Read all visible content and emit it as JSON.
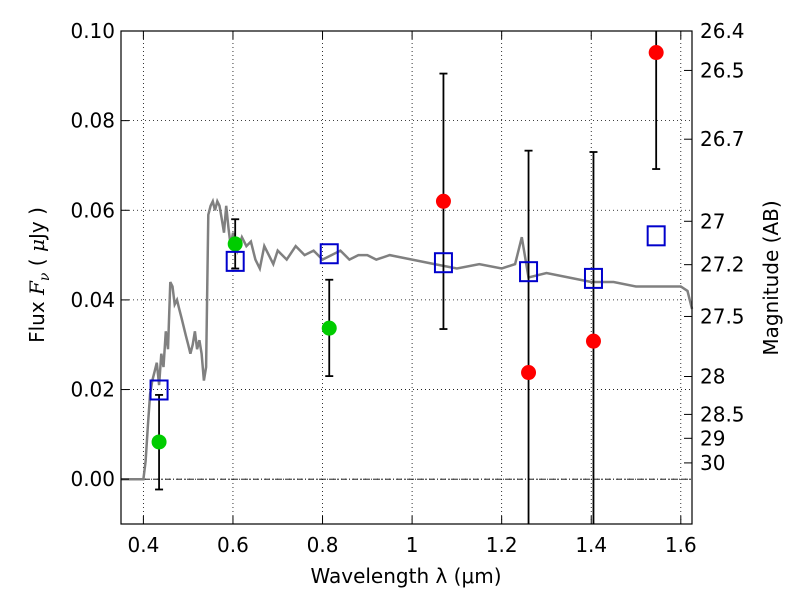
{
  "chart_data": {
    "type": "scatter",
    "xlabel": "Wavelength  λ (μm)",
    "ylabel": "Flux  F_ν  ( μJy )",
    "ylabel_parts": {
      "pre": "Flux  ",
      "F": "F",
      "sub": "ν",
      "mid": "  ( ",
      "mu": "μ",
      "post": "Jy )"
    },
    "y2label": "Magnitude (AB)",
    "xlim": [
      0.35,
      1.625
    ],
    "ylim": [
      -0.01,
      0.1
    ],
    "grid": true,
    "x_ticks": [
      {
        "value": 0.4,
        "label": "0.4"
      },
      {
        "value": 0.6,
        "label": "0.6"
      },
      {
        "value": 0.8,
        "label": "0.8"
      },
      {
        "value": 1.0,
        "label": "1"
      },
      {
        "value": 1.2,
        "label": "1.2"
      },
      {
        "value": 1.4,
        "label": "1.4"
      },
      {
        "value": 1.6,
        "label": "1.6"
      }
    ],
    "y_ticks": [
      {
        "value": 0.0,
        "label": "0.00"
      },
      {
        "value": 0.02,
        "label": "0.02"
      },
      {
        "value": 0.04,
        "label": "0.04"
      },
      {
        "value": 0.06,
        "label": "0.06"
      },
      {
        "value": 0.08,
        "label": "0.08"
      },
      {
        "value": 0.1,
        "label": "0.10"
      }
    ],
    "y2_ticks": [
      {
        "value": 26.4,
        "label": "26.4"
      },
      {
        "value": 26.5,
        "label": "26.5"
      },
      {
        "value": 26.7,
        "label": "26.7"
      },
      {
        "value": 27.0,
        "label": "27"
      },
      {
        "value": 27.2,
        "label": "27.2"
      },
      {
        "value": 27.5,
        "label": "27.5"
      },
      {
        "value": 28.0,
        "label": "28"
      },
      {
        "value": 28.5,
        "label": "28.5"
      },
      {
        "value": 29.0,
        "label": "29"
      },
      {
        "value": 30.0,
        "label": "30"
      }
    ],
    "template_spectrum": {
      "color": "#808080",
      "x": [
        0.35,
        0.4,
        0.405,
        0.41,
        0.415,
        0.42,
        0.425,
        0.43,
        0.435,
        0.44,
        0.445,
        0.45,
        0.455,
        0.46,
        0.465,
        0.47,
        0.475,
        0.48,
        0.485,
        0.49,
        0.495,
        0.5,
        0.505,
        0.51,
        0.515,
        0.52,
        0.525,
        0.53,
        0.535,
        0.54,
        0.545,
        0.55,
        0.555,
        0.56,
        0.565,
        0.57,
        0.575,
        0.58,
        0.585,
        0.59,
        0.595,
        0.6,
        0.61,
        0.62,
        0.63,
        0.64,
        0.65,
        0.66,
        0.67,
        0.68,
        0.69,
        0.7,
        0.72,
        0.74,
        0.76,
        0.78,
        0.8,
        0.82,
        0.84,
        0.86,
        0.88,
        0.9,
        0.92,
        0.95,
        1.0,
        1.05,
        1.1,
        1.15,
        1.2,
        1.23,
        1.245,
        1.26,
        1.3,
        1.35,
        1.4,
        1.45,
        1.5,
        1.55,
        1.6,
        1.615,
        1.625
      ],
      "y": [
        0.0,
        0.0,
        0.004,
        0.012,
        0.019,
        0.022,
        0.024,
        0.026,
        0.021,
        0.028,
        0.025,
        0.033,
        0.029,
        0.044,
        0.043,
        0.039,
        0.04,
        0.038,
        0.036,
        0.034,
        0.032,
        0.03,
        0.028,
        0.03,
        0.033,
        0.029,
        0.031,
        0.028,
        0.022,
        0.025,
        0.059,
        0.061,
        0.062,
        0.06,
        0.062,
        0.061,
        0.058,
        0.055,
        0.061,
        0.056,
        0.052,
        0.055,
        0.051,
        0.054,
        0.052,
        0.053,
        0.049,
        0.047,
        0.052,
        0.05,
        0.048,
        0.051,
        0.049,
        0.052,
        0.05,
        0.051,
        0.049,
        0.05,
        0.051,
        0.049,
        0.05,
        0.05,
        0.049,
        0.05,
        0.049,
        0.048,
        0.047,
        0.048,
        0.047,
        0.048,
        0.054,
        0.045,
        0.046,
        0.045,
        0.044,
        0.044,
        0.043,
        0.043,
        0.043,
        0.042,
        0.038
      ]
    },
    "series": [
      {
        "color": "#00cc00",
        "marker": "circle",
        "points": [
          {
            "x": 0.435,
            "y": 0.0083,
            "ylo": -0.0023,
            "yhi": 0.0188
          },
          {
            "x": 0.605,
            "y": 0.0525,
            "ylo": 0.047,
            "yhi": 0.058
          },
          {
            "x": 0.815,
            "y": 0.0337,
            "ylo": 0.023,
            "yhi": 0.0445
          }
        ]
      },
      {
        "color": "#ff0000",
        "marker": "circle",
        "points": [
          {
            "x": 1.07,
            "y": 0.062,
            "ylo": 0.0335,
            "yhi": 0.0905
          },
          {
            "x": 1.26,
            "y": 0.0238,
            "ylo": -0.01,
            "yhi": 0.0733
          },
          {
            "x": 1.405,
            "y": 0.0308,
            "ylo": -0.01,
            "yhi": 0.073
          },
          {
            "x": 1.545,
            "y": 0.0952,
            "ylo": 0.0692,
            "yhi": 0.1
          }
        ]
      },
      {
        "color": "#0000cc",
        "marker": "square-open",
        "points": [
          {
            "x": 0.435,
            "y": 0.0199
          },
          {
            "x": 0.605,
            "y": 0.0486
          },
          {
            "x": 0.815,
            "y": 0.0503
          },
          {
            "x": 1.07,
            "y": 0.0483
          },
          {
            "x": 1.26,
            "y": 0.0463
          },
          {
            "x": 1.405,
            "y": 0.0448
          },
          {
            "x": 1.545,
            "y": 0.0543
          }
        ]
      }
    ]
  }
}
